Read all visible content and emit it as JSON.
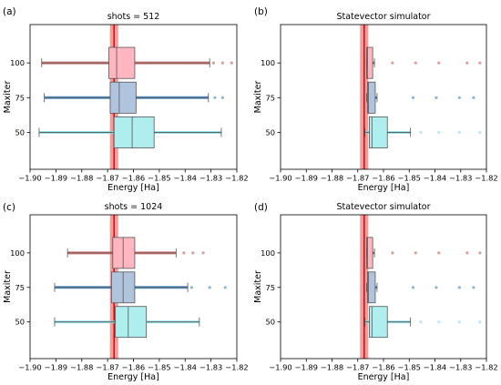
{
  "chart_data": [
    {
      "panel": "(a)",
      "type": "boxplot",
      "title": "shots = 512",
      "xlabel": "Energy [Ha]",
      "ylabel": "Maxiter",
      "xlim": [
        -1.9,
        -1.82
      ],
      "xticks": [
        "−1.90",
        "−1.89",
        "−1.88",
        "−1.87",
        "−1.86",
        "−1.85",
        "−1.84",
        "−1.83",
        "−1.82"
      ],
      "reference_energy": -1.8675,
      "categories": [
        "100",
        "75",
        "50"
      ],
      "series": [
        {
          "category": "100",
          "color": "#ffb6c1",
          "dot_color": "#c0504d",
          "whisker_low": -1.8955,
          "q1": -1.8695,
          "median": -1.8665,
          "q3": -1.8595,
          "whisker_high": -1.8305,
          "outliers": [
            -1.829,
            -1.8255,
            -1.822
          ]
        },
        {
          "category": "75",
          "color": "#b0c4de",
          "dot_color": "#2e75b6",
          "whisker_low": -1.8945,
          "q1": -1.869,
          "median": -1.8655,
          "q3": -1.859,
          "whisker_high": -1.831,
          "outliers": [
            -1.8285,
            -1.8255
          ]
        },
        {
          "category": "50",
          "color": "#aeeeee",
          "dot_color": "#80d8e0",
          "whisker_low": -1.8965,
          "q1": -1.8675,
          "median": -1.8605,
          "q3": -1.852,
          "whisker_high": -1.826,
          "outliers": []
        }
      ]
    },
    {
      "panel": "(b)",
      "type": "boxplot",
      "title": "Statevector simulator",
      "xlabel": "Energy [Ha]",
      "ylabel": "Maxiter",
      "xlim": [
        -1.9,
        -1.82
      ],
      "xticks": [
        "−1.90",
        "−1.89",
        "−1.88",
        "−1.87",
        "−1.86",
        "−1.85",
        "−1.84",
        "−1.83",
        "−1.82"
      ],
      "reference_energy": -1.8675,
      "categories": [
        "100",
        "75",
        "50"
      ],
      "series": [
        {
          "category": "100",
          "color": "#ffb6c1",
          "dot_color": "#c0504d",
          "whisker_low": -1.8665,
          "q1": -1.8665,
          "median": -1.8662,
          "q3": -1.8642,
          "whisker_high": -1.8635,
          "outliers": [
            -1.8565,
            -1.8475,
            -1.8385,
            -1.8275,
            -1.8225
          ]
        },
        {
          "category": "75",
          "color": "#b0c4de",
          "dot_color": "#2e75b6",
          "whisker_low": -1.8665,
          "q1": -1.8662,
          "median": -1.8658,
          "q3": -1.8632,
          "whisker_high": -1.8625,
          "outliers": [
            -1.8485,
            -1.8395,
            -1.8305,
            -1.825
          ]
        },
        {
          "category": "50",
          "color": "#aeeeee",
          "dot_color": "#80d8e0",
          "whisker_low": -1.8672,
          "q1": -1.8655,
          "median": -1.8645,
          "q3": -1.8585,
          "whisker_high": -1.8495,
          "outliers": [
            -1.8455,
            -1.8385,
            -1.8305,
            -1.8225
          ]
        }
      ]
    },
    {
      "panel": "(c)",
      "type": "boxplot",
      "title": "shots = 1024",
      "xlabel": "Energy [Ha]",
      "ylabel": "Maxiter",
      "xlim": [
        -1.9,
        -1.82
      ],
      "xticks": [
        "−1.90",
        "−1.89",
        "−1.88",
        "−1.87",
        "−1.86",
        "−1.85",
        "−1.84",
        "−1.83",
        "−1.82"
      ],
      "reference_energy": -1.8675,
      "categories": [
        "100",
        "75",
        "50"
      ],
      "series": [
        {
          "category": "100",
          "color": "#ffb6c1",
          "dot_color": "#c0504d",
          "whisker_low": -1.8855,
          "q1": -1.868,
          "median": -1.864,
          "q3": -1.8595,
          "whisker_high": -1.8435,
          "outliers": [
            -1.8405,
            -1.837,
            -1.833
          ]
        },
        {
          "category": "75",
          "color": "#b0c4de",
          "dot_color": "#2e75b6",
          "whisker_low": -1.8905,
          "q1": -1.8685,
          "median": -1.864,
          "q3": -1.8595,
          "whisker_high": -1.839,
          "outliers": [
            -1.8375,
            -1.8305,
            -1.8245
          ]
        },
        {
          "category": "50",
          "color": "#aeeeee",
          "dot_color": "#80d8e0",
          "whisker_low": -1.8905,
          "q1": -1.867,
          "median": -1.862,
          "q3": -1.855,
          "whisker_high": -1.8345,
          "outliers": []
        }
      ]
    },
    {
      "panel": "(d)",
      "type": "boxplot",
      "title": "Statevector simulator",
      "xlabel": "Energy [Ha]",
      "ylabel": "Maxiter",
      "xlim": [
        -1.9,
        -1.82
      ],
      "xticks": [
        "−1.90",
        "−1.89",
        "−1.88",
        "−1.87",
        "−1.86",
        "−1.85",
        "−1.84",
        "−1.83",
        "−1.82"
      ],
      "reference_energy": -1.8675,
      "categories": [
        "100",
        "75",
        "50"
      ],
      "series": [
        {
          "category": "100",
          "color": "#ffb6c1",
          "dot_color": "#c0504d",
          "whisker_low": -1.8665,
          "q1": -1.8665,
          "median": -1.8662,
          "q3": -1.8642,
          "whisker_high": -1.8635,
          "outliers": [
            -1.8565,
            -1.8475,
            -1.8385,
            -1.8275,
            -1.8225
          ]
        },
        {
          "category": "75",
          "color": "#b0c4de",
          "dot_color": "#2e75b6",
          "whisker_low": -1.8665,
          "q1": -1.8662,
          "median": -1.8658,
          "q3": -1.8632,
          "whisker_high": -1.8625,
          "outliers": [
            -1.8485,
            -1.8395,
            -1.8305,
            -1.825
          ]
        },
        {
          "category": "50",
          "color": "#aeeeee",
          "dot_color": "#80d8e0",
          "whisker_low": -1.8672,
          "q1": -1.8655,
          "median": -1.8645,
          "q3": -1.8585,
          "whisker_high": -1.8495,
          "outliers": [
            -1.8455,
            -1.8385,
            -1.8305,
            -1.8225
          ]
        }
      ]
    }
  ],
  "style": {
    "reference_band_color": "#ee6666",
    "reference_line_color": "#cc0000",
    "box_edge_color": "#555555"
  }
}
